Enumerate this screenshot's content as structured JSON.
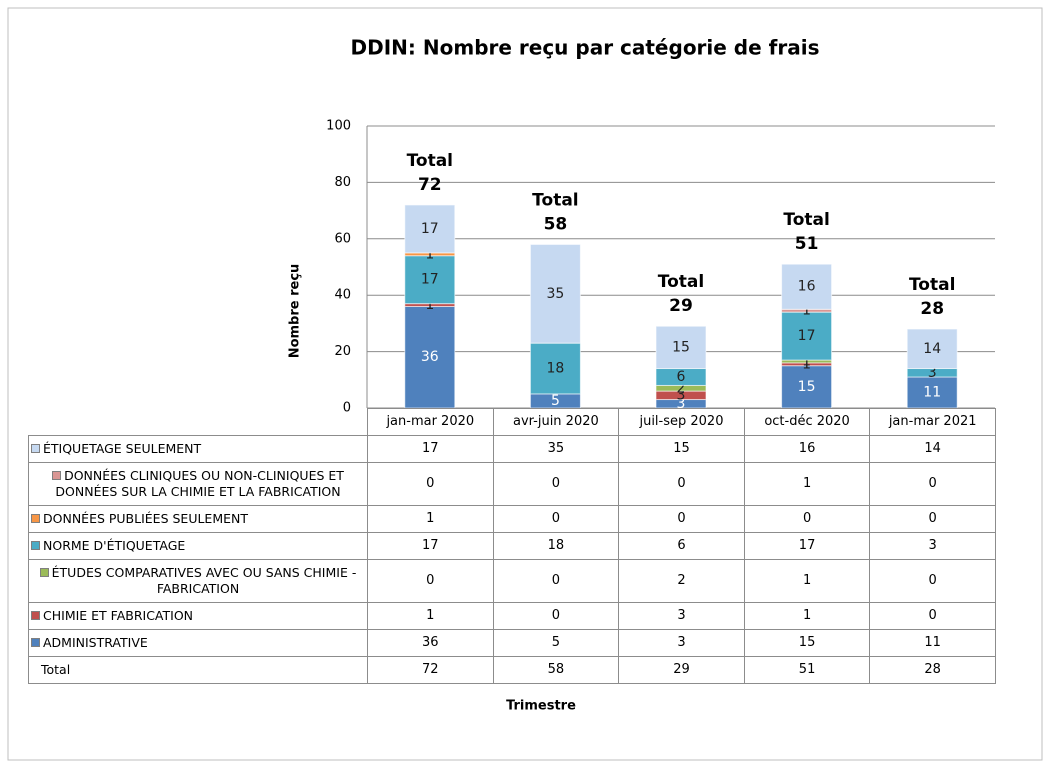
{
  "chart_data": {
    "type": "stacked_bar",
    "title": "DDIN:  Nombre reçu par catégorie de frais",
    "y_label": "Nombre reçu",
    "x_label": "Trimestre",
    "categories": [
      "jan-mar 2020",
      "avr-juin 2020",
      "juil-sep 2020",
      "oct-déc 2020",
      "jan-mar 2021"
    ],
    "series": [
      {
        "name": "ADMINISTRATIVE",
        "color": "#4f81bd",
        "values": [
          36,
          5,
          3,
          15,
          11
        ]
      },
      {
        "name": "CHIMIE ET FABRICATION",
        "color": "#c0504d",
        "values": [
          1,
          0,
          3,
          1,
          0
        ]
      },
      {
        "name": "ÉTUDES COMPARATIVES AVEC OU SANS CHIMIE - FABRICATION",
        "color": "#9bbb59",
        "values": [
          0,
          0,
          2,
          1,
          0
        ]
      },
      {
        "name": "NORME D'ÉTIQUETAGE",
        "color": "#4bacc6",
        "values": [
          17,
          18,
          6,
          17,
          3
        ]
      },
      {
        "name": "DONNÉES PUBLIÉES SEULEMENT",
        "color": "#f79646",
        "values": [
          1,
          0,
          0,
          0,
          0
        ]
      },
      {
        "name": "DONNÉES CLINIQUES OU NON-CLINIQUES ET DONNÉES SUR LA CHIMIE ET LA FABRICATION",
        "color": "#d99694",
        "values": [
          0,
          0,
          0,
          1,
          0
        ]
      },
      {
        "name": "ÉTIQUETAGE SEULEMENT",
        "color": "#c6d9f1",
        "values": [
          17,
          35,
          15,
          16,
          14
        ]
      }
    ],
    "totals": {
      "name": "Total",
      "values": [
        72,
        58,
        29,
        51,
        28
      ]
    },
    "ylim": [
      0,
      100
    ],
    "yticks": [
      0,
      20,
      40,
      60,
      80,
      100
    ],
    "grid": true
  }
}
